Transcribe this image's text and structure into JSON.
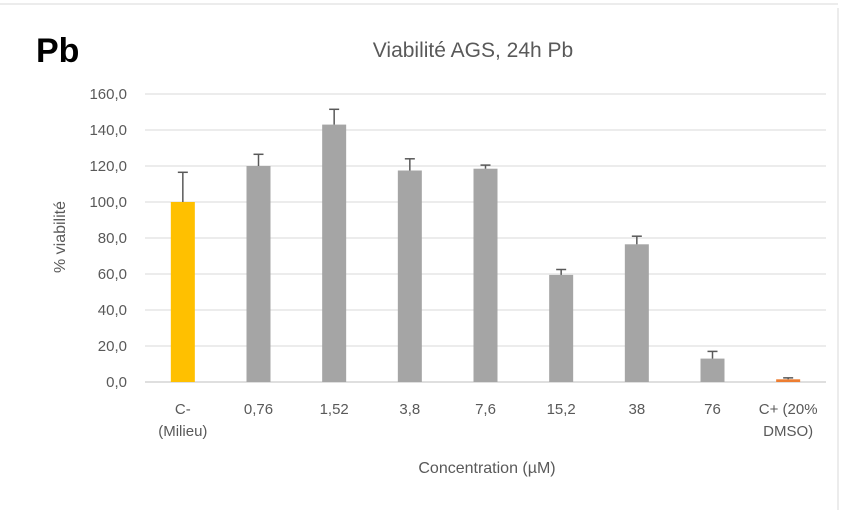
{
  "panel_label": "Pb",
  "chart_data": {
    "type": "bar",
    "title": "Viabilité AGS, 24h Pb",
    "xlabel": "Concentration (µM)",
    "ylabel": "% viabilité",
    "ylim": [
      0,
      160
    ],
    "yticks": [
      "0,0",
      "20,0",
      "40,0",
      "60,0",
      "80,0",
      "100,0",
      "120,0",
      "140,0",
      "160,0"
    ],
    "grid": true,
    "categories": [
      [
        "C-",
        "(Milieu)"
      ],
      [
        "0,76"
      ],
      [
        "1,52"
      ],
      [
        "3,8"
      ],
      [
        "7,6"
      ],
      [
        "15,2"
      ],
      [
        "38"
      ],
      [
        "76"
      ],
      [
        "C+ (20%",
        "DMSO)"
      ]
    ],
    "values": [
      100.0,
      120.0,
      143.0,
      117.5,
      118.5,
      59.5,
      76.5,
      13.0,
      1.5
    ],
    "errors": [
      16.5,
      6.5,
      8.5,
      6.5,
      2.0,
      3.0,
      4.5,
      4.0,
      0.8
    ],
    "colors": [
      "#FFC000",
      "#A5A5A5",
      "#A5A5A5",
      "#A5A5A5",
      "#A5A5A5",
      "#A5A5A5",
      "#A5A5A5",
      "#A5A5A5",
      "#ED7D31"
    ],
    "grid_color": "#D9D9D9",
    "axis_color": "#BFBFBF",
    "error_color": "#595959"
  }
}
